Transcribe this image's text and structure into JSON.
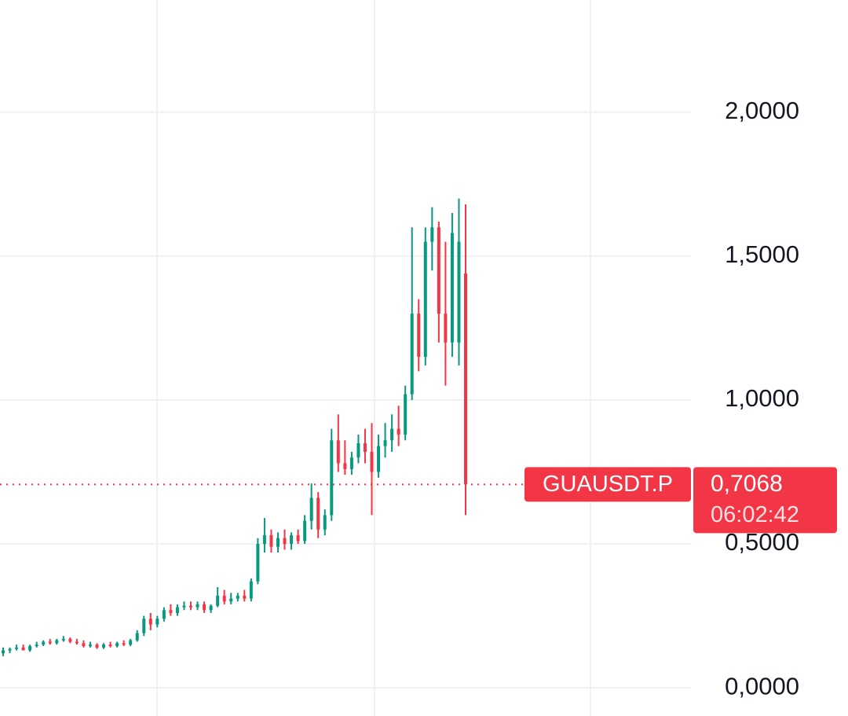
{
  "chart_data": {
    "type": "candlestick",
    "symbol": "GUAUSDT.P",
    "last_value": 0.7068,
    "last_value_label": "0,7068",
    "countdown": "06:02:42",
    "up_color": "#089981",
    "down_color": "#f23645",
    "ylim": [
      -0.098,
      2.39
    ],
    "yticks": [
      {
        "value": 2,
        "label": "2,0000"
      },
      {
        "value": 1.5,
        "label": "1,5000"
      },
      {
        "value": 1,
        "label": "1,0000"
      },
      {
        "value": 0.5,
        "label": "0,5000"
      },
      {
        "value": 0,
        "label": "0,0000"
      }
    ],
    "grid": true,
    "open": [
      0.12,
      0.13,
      0.135,
      0.14,
      0.13,
      0.145,
      0.15,
      0.16,
      0.155,
      0.165,
      0.17,
      0.16,
      0.155,
      0.145,
      0.15,
      0.14,
      0.15,
      0.145,
      0.155,
      0.15,
      0.165,
      0.19,
      0.24,
      0.22,
      0.24,
      0.27,
      0.26,
      0.28,
      0.285,
      0.28,
      0.29,
      0.27,
      0.285,
      0.32,
      0.3,
      0.31,
      0.32,
      0.31,
      0.37,
      0.5,
      0.53,
      0.49,
      0.52,
      0.5,
      0.53,
      0.51,
      0.58,
      0.66,
      0.55,
      0.6,
      0.86,
      0.78,
      0.76,
      0.8,
      0.85,
      0.82,
      0.75,
      0.84,
      0.86,
      0.9,
      0.88,
      1.02,
      1.3,
      1.15,
      1.55,
      1.6,
      1.3,
      1.2,
      1.2,
      1.44
    ],
    "high": [
      0.14,
      0.14,
      0.15,
      0.15,
      0.15,
      0.16,
      0.165,
      0.17,
      0.17,
      0.18,
      0.175,
      0.17,
      0.165,
      0.16,
      0.155,
      0.155,
      0.16,
      0.16,
      0.165,
      0.17,
      0.2,
      0.25,
      0.26,
      0.25,
      0.28,
      0.29,
      0.29,
      0.3,
      0.3,
      0.3,
      0.3,
      0.29,
      0.35,
      0.34,
      0.33,
      0.33,
      0.34,
      0.38,
      0.52,
      0.59,
      0.55,
      0.54,
      0.55,
      0.54,
      0.55,
      0.6,
      0.71,
      0.68,
      0.62,
      0.9,
      0.95,
      0.86,
      0.82,
      0.88,
      0.9,
      0.92,
      0.88,
      0.92,
      0.95,
      0.98,
      1.05,
      1.6,
      1.35,
      1.6,
      1.67,
      1.62,
      1.55,
      1.65,
      1.7,
      1.68
    ],
    "low": [
      0.11,
      0.12,
      0.13,
      0.13,
      0.125,
      0.14,
      0.145,
      0.15,
      0.15,
      0.16,
      0.155,
      0.15,
      0.14,
      0.14,
      0.135,
      0.135,
      0.14,
      0.14,
      0.145,
      0.145,
      0.16,
      0.18,
      0.2,
      0.21,
      0.23,
      0.25,
      0.25,
      0.27,
      0.27,
      0.27,
      0.26,
      0.26,
      0.28,
      0.29,
      0.29,
      0.3,
      0.3,
      0.3,
      0.36,
      0.47,
      0.47,
      0.47,
      0.48,
      0.48,
      0.5,
      0.5,
      0.55,
      0.52,
      0.53,
      0.58,
      0.75,
      0.74,
      0.74,
      0.78,
      0.78,
      0.6,
      0.73,
      0.8,
      0.82,
      0.84,
      0.86,
      1.0,
      1.1,
      1.12,
      1.45,
      1.2,
      1.05,
      1.15,
      1.12,
      0.6
    ],
    "close": [
      0.13,
      0.135,
      0.14,
      0.13,
      0.145,
      0.15,
      0.16,
      0.155,
      0.165,
      0.17,
      0.16,
      0.155,
      0.145,
      0.15,
      0.14,
      0.15,
      0.145,
      0.155,
      0.15,
      0.165,
      0.19,
      0.24,
      0.22,
      0.24,
      0.27,
      0.26,
      0.28,
      0.285,
      0.28,
      0.29,
      0.27,
      0.285,
      0.32,
      0.3,
      0.31,
      0.32,
      0.31,
      0.37,
      0.5,
      0.53,
      0.49,
      0.52,
      0.5,
      0.53,
      0.51,
      0.58,
      0.66,
      0.55,
      0.6,
      0.86,
      0.78,
      0.76,
      0.8,
      0.85,
      0.82,
      0.75,
      0.84,
      0.86,
      0.9,
      0.88,
      1.02,
      1.3,
      1.15,
      1.55,
      1.6,
      1.3,
      1.2,
      1.58,
      1.55,
      0.7068
    ]
  }
}
